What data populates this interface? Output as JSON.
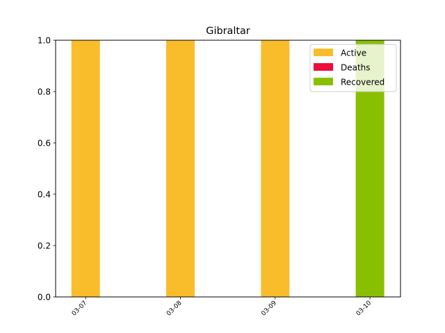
{
  "chart_data": {
    "type": "bar",
    "stacked": true,
    "title": "Gibraltar",
    "xlabel": "",
    "ylabel": "",
    "categories": [
      "03-07",
      "03-08",
      "03-09",
      "03-10"
    ],
    "series": [
      {
        "name": "Active",
        "color": "#f9bc2a",
        "values": [
          1,
          1,
          1,
          0
        ]
      },
      {
        "name": "Deaths",
        "color": "#ee0b3d",
        "values": [
          0,
          0,
          0,
          0
        ]
      },
      {
        "name": "Recovered",
        "color": "#88c000",
        "values": [
          0,
          0,
          0,
          1
        ]
      }
    ],
    "ylim": [
      0,
      1
    ],
    "yticks": [
      "0.0",
      "0.2",
      "0.4",
      "0.6",
      "0.8",
      "1.0"
    ],
    "grid": false,
    "legend_position": "top-right"
  }
}
